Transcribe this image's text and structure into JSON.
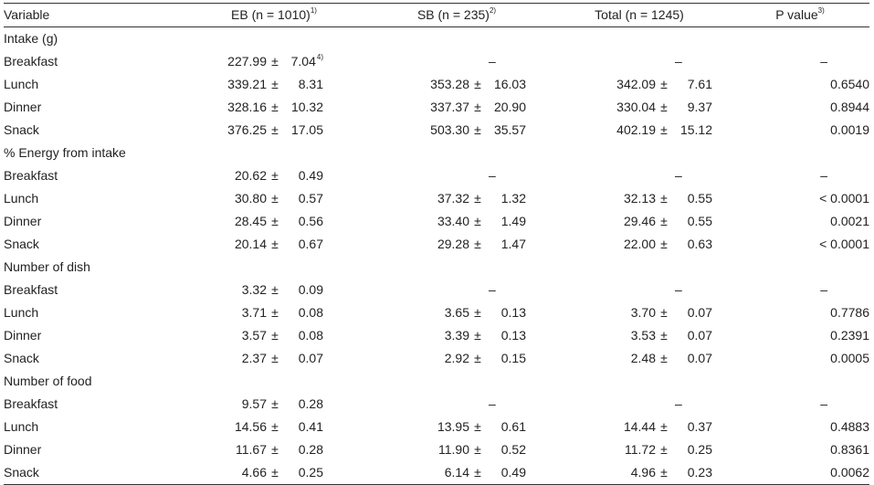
{
  "header": {
    "variable": "Variable",
    "eb": "EB (n = 1010)",
    "eb_note": "1)",
    "sb": "SB (n = 235)",
    "sb_note": "2)",
    "total": "Total (n = 1245)",
    "pvalue": "P value",
    "pvalue_note": "3)"
  },
  "footnote_marker_breakfast_sd": "4)",
  "pm_symbol": "±",
  "dash": "–",
  "groups": [
    {
      "title": "Intake (g)",
      "rows": [
        {
          "label": "Breakfast",
          "eb": [
            "227.99",
            "7.04"
          ],
          "sb": null,
          "total": null,
          "p": "–"
        },
        {
          "label": "Lunch",
          "eb": [
            "339.21",
            "8.31"
          ],
          "sb": [
            "353.28",
            "16.03"
          ],
          "total": [
            "342.09",
            "7.61"
          ],
          "p": "0.6540"
        },
        {
          "label": "Dinner",
          "eb": [
            "328.16",
            "10.32"
          ],
          "sb": [
            "337.37",
            "20.90"
          ],
          "total": [
            "330.04",
            "9.37"
          ],
          "p": "0.8944"
        },
        {
          "label": "Snack",
          "eb": [
            "376.25",
            "17.05"
          ],
          "sb": [
            "503.30",
            "35.57"
          ],
          "total": [
            "402.19",
            "15.12"
          ],
          "p": "0.0019"
        }
      ]
    },
    {
      "title": "% Energy from intake",
      "rows": [
        {
          "label": "Breakfast",
          "eb": [
            "20.62",
            "0.49"
          ],
          "sb": null,
          "total": null,
          "p": "–"
        },
        {
          "label": "Lunch",
          "eb": [
            "30.80",
            "0.57"
          ],
          "sb": [
            "37.32",
            "1.32"
          ],
          "total": [
            "32.13",
            "0.55"
          ],
          "p": "< 0.0001"
        },
        {
          "label": "Dinner",
          "eb": [
            "28.45",
            "0.56"
          ],
          "sb": [
            "33.40",
            "1.49"
          ],
          "total": [
            "29.46",
            "0.55"
          ],
          "p": "0.0021"
        },
        {
          "label": "Snack",
          "eb": [
            "20.14",
            "0.67"
          ],
          "sb": [
            "29.28",
            "1.47"
          ],
          "total": [
            "22.00",
            "0.63"
          ],
          "p": "< 0.0001"
        }
      ]
    },
    {
      "title": "Number of dish",
      "rows": [
        {
          "label": "Breakfast",
          "eb": [
            "3.32",
            "0.09"
          ],
          "sb": null,
          "total": null,
          "p": "–"
        },
        {
          "label": "Lunch",
          "eb": [
            "3.71",
            "0.08"
          ],
          "sb": [
            "3.65",
            "0.13"
          ],
          "total": [
            "3.70",
            "0.07"
          ],
          "p": "0.7786"
        },
        {
          "label": "Dinner",
          "eb": [
            "3.57",
            "0.08"
          ],
          "sb": [
            "3.39",
            "0.13"
          ],
          "total": [
            "3.53",
            "0.07"
          ],
          "p": "0.2391"
        },
        {
          "label": "Snack",
          "eb": [
            "2.37",
            "0.07"
          ],
          "sb": [
            "2.92",
            "0.15"
          ],
          "total": [
            "2.48",
            "0.07"
          ],
          "p": "0.0005"
        }
      ]
    },
    {
      "title": "Number of food",
      "rows": [
        {
          "label": "Breakfast",
          "eb": [
            "9.57",
            "0.28"
          ],
          "sb": null,
          "total": null,
          "p": "–"
        },
        {
          "label": "Lunch",
          "eb": [
            "14.56",
            "0.41"
          ],
          "sb": [
            "13.95",
            "0.61"
          ],
          "total": [
            "14.44",
            "0.37"
          ],
          "p": "0.4883"
        },
        {
          "label": "Dinner",
          "eb": [
            "11.67",
            "0.28"
          ],
          "sb": [
            "11.90",
            "0.52"
          ],
          "total": [
            "11.72",
            "0.25"
          ],
          "p": "0.8361"
        },
        {
          "label": "Snack",
          "eb": [
            "4.66",
            "0.25"
          ],
          "sb": [
            "6.14",
            "0.49"
          ],
          "total": [
            "4.96",
            "0.23"
          ],
          "p": "0.0062"
        }
      ]
    }
  ]
}
